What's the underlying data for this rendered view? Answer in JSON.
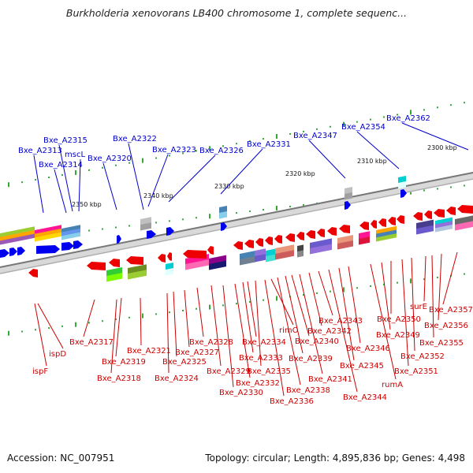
{
  "title": "Burkholderia xenovorans LB400 chromosome 1, complete sequenc...",
  "footer": {
    "accession": "Accession: NC_007951",
    "topology": "Topology: circular; Length: 4,895,836 bp; Genes: 4,498"
  },
  "colors": {
    "forward_label": "#0000cc",
    "reverse_label": "#cc0000",
    "forward_gene": "#0000ee",
    "reverse_gene": "#ee0000",
    "backbone": "#8a8a8a",
    "tick": "#33aa33"
  },
  "scale_labels": [
    "2350 kbp",
    "2340 kbp",
    "2330 kbp",
    "2320 kbp",
    "2310 kbp",
    "2300 kbp"
  ],
  "forward_genes": [
    "Bxe_A2313",
    "Bxe_A2314",
    "Bxe_A2315",
    "mscL",
    "Bxe_A2320",
    "Bxe_A2322",
    "Bxe_A2323",
    "Bxe_A2326",
    "Bxe_A2331",
    "Bxe_A2347",
    "Bxe_A2354",
    "Bxe_A2362"
  ],
  "reverse_genes": [
    "ispF",
    "ispD",
    "Bxe_A2317",
    "Bxe_A2318",
    "Bxe_A2319",
    "Bxe_A2321",
    "Bxe_A2324",
    "Bxe_A2325",
    "Bxe_A2327",
    "Bxe_A2328",
    "Bxe_A2329",
    "Bxe_A2330",
    "Bxe_A2332",
    "Bxe_A2333",
    "Bxe_A2334",
    "Bxe_A2335",
    "Bxe_A2336",
    "rimO",
    "Bxe_A2338",
    "Bxe_A2339",
    "Bxe_A2340",
    "Bxe_A2341",
    "Bxe_A2342",
    "Bxe_A2343",
    "Bxe_A2344",
    "Bxe_A2345",
    "Bxe_A2346",
    "rumA",
    "Bxe_A2349",
    "Bxe_A2350",
    "Bxe_A2351",
    "Bxe_A2352",
    "surE",
    "Bxe_A2355",
    "Bxe_A2356",
    "Bxe_A2357"
  ]
}
